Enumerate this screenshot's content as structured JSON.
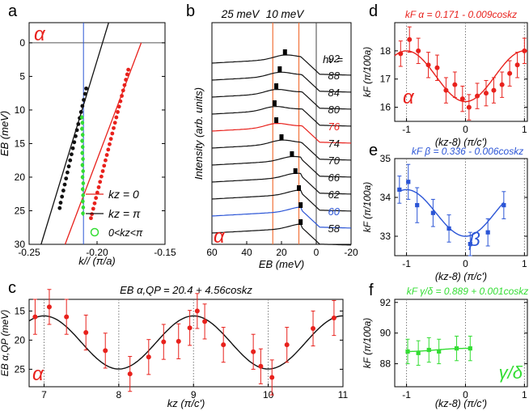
{
  "colors": {
    "red": "#e8211c",
    "black": "#111111",
    "blue": "#2b55d6",
    "green": "#33dd33",
    "orange": "#f2733a",
    "grid": "#888888"
  },
  "chart_data": [
    {
      "panel": "a",
      "type": "scatter",
      "panel_label": "a",
      "band_label": "α",
      "xlabel": "k// (π/a)",
      "ylabel": "EB (meV)",
      "xlim": [
        -0.25,
        -0.15
      ],
      "ylim": [
        30,
        -3
      ],
      "xticks": [
        "-0.25",
        "-0.20",
        "-0.15"
      ],
      "yticks": [
        "0",
        "5",
        "10",
        "15",
        "20",
        "25",
        "30"
      ],
      "reference_line": {
        "x": -0.21
      },
      "series": [
        {
          "name": "kz = 0",
          "color": "red",
          "points": [
            [
              -0.2045,
              26.1
            ],
            [
              -0.2038,
              25.5
            ],
            [
              -0.2028,
              24.7
            ],
            [
              -0.2018,
              23.9
            ],
            [
              -0.2008,
              23.1
            ],
            [
              -0.1998,
              22.3
            ],
            [
              -0.1988,
              21.5
            ],
            [
              -0.1978,
              20.7
            ],
            [
              -0.1968,
              19.9
            ],
            [
              -0.1958,
              19.1
            ],
            [
              -0.1948,
              18.3
            ],
            [
              -0.1938,
              17.5
            ],
            [
              -0.1928,
              16.7
            ],
            [
              -0.1918,
              15.9
            ],
            [
              -0.1908,
              15.1
            ],
            [
              -0.1898,
              14.3
            ],
            [
              -0.1888,
              13.5
            ],
            [
              -0.1878,
              12.7
            ],
            [
              -0.1868,
              11.9
            ],
            [
              -0.1858,
              11.1
            ],
            [
              -0.1848,
              10.3
            ],
            [
              -0.1838,
              9.5
            ],
            [
              -0.1828,
              8.7
            ],
            [
              -0.1818,
              7.9
            ],
            [
              -0.1808,
              7.1
            ],
            [
              -0.1798,
              6.3
            ],
            [
              -0.1788,
              5.5
            ],
            [
              -0.1778,
              4.7
            ],
            [
              -0.177,
              4.0
            ]
          ],
          "fit": [
            [
              -0.2235,
              30
            ],
            [
              -0.1675,
              0
            ]
          ]
        },
        {
          "name": "kz = π",
          "color": "black",
          "points": [
            [
              -0.2275,
              24.6
            ],
            [
              -0.2268,
              23.8
            ],
            [
              -0.2258,
              22.9
            ],
            [
              -0.2248,
              22.0
            ],
            [
              -0.2238,
              21.1
            ],
            [
              -0.2228,
              20.2
            ],
            [
              -0.2218,
              19.3
            ],
            [
              -0.2208,
              18.4
            ],
            [
              -0.2198,
              17.5
            ],
            [
              -0.2188,
              16.6
            ],
            [
              -0.2178,
              15.7
            ],
            [
              -0.2168,
              14.8
            ],
            [
              -0.2158,
              13.9
            ],
            [
              -0.2148,
              13.0
            ],
            [
              -0.2138,
              12.1
            ],
            [
              -0.2128,
              11.2
            ],
            [
              -0.2118,
              10.3
            ],
            [
              -0.2108,
              9.4
            ],
            [
              -0.2098,
              8.5
            ],
            [
              -0.2088,
              7.6
            ],
            [
              -0.208,
              6.8
            ]
          ],
          "fit": [
            [
              -0.2412,
              30
            ],
            [
              -0.1915,
              -3
            ]
          ]
        },
        {
          "name": "0<kz<π",
          "color": "green",
          "points": [
            [
              -0.2112,
              11.1
            ],
            [
              -0.2108,
              11.9
            ],
            [
              -0.2111,
              12.8
            ],
            [
              -0.2106,
              13.7
            ],
            [
              -0.211,
              14.6
            ],
            [
              -0.2106,
              15.5
            ],
            [
              -0.2109,
              16.4
            ],
            [
              -0.2104,
              17.3
            ],
            [
              -0.2108,
              18.2
            ],
            [
              -0.2103,
              19.1
            ],
            [
              -0.2107,
              20.0
            ],
            [
              -0.2102,
              20.9
            ],
            [
              -0.2106,
              21.8
            ],
            [
              -0.2103,
              22.7
            ],
            [
              -0.2105,
              23.6
            ],
            [
              -0.2102,
              24.5
            ],
            [
              -0.2104,
              25.4
            ]
          ]
        }
      ]
    },
    {
      "panel": "b",
      "type": "line",
      "panel_label": "b",
      "band_label": "α",
      "header_labels": [
        "25 meV",
        "10 meV"
      ],
      "xlabel": "EB (meV)",
      "ylabel": "Intensity (arb. units)",
      "xlim": [
        60,
        -20
      ],
      "xticks": [
        "60",
        "40",
        "20",
        "0",
        "-20"
      ],
      "hv_title": "hν =",
      "reference_lines": [
        25,
        10
      ],
      "series": [
        {
          "name": "92",
          "color": "black",
          "peak": 18
        },
        {
          "name": "88",
          "color": "black",
          "peak": 21
        },
        {
          "name": "84",
          "color": "black",
          "peak": 23
        },
        {
          "name": "80",
          "color": "black",
          "peak": 24
        },
        {
          "name": "76",
          "color": "red",
          "peak": 23
        },
        {
          "name": "74",
          "color": "black",
          "peak": 20
        },
        {
          "name": "70",
          "color": "black",
          "peak": 14
        },
        {
          "name": "66",
          "color": "black",
          "peak": 12
        },
        {
          "name": "62",
          "color": "black",
          "peak": 10
        },
        {
          "name": "60",
          "color": "blue",
          "peak": 9
        },
        {
          "name": "58",
          "color": "black",
          "peak": 9
        }
      ]
    },
    {
      "panel": "c",
      "type": "scatter",
      "panel_label": "c",
      "band_label": "α",
      "title": "EB α,QP = 20.4 + 4.56coskz",
      "xlabel": "kz (π/c')",
      "ylabel": "EB α,QP (meV)",
      "xlim": [
        6.8,
        11
      ],
      "ylim": [
        28,
        13
      ],
      "xticks": [
        "7",
        "8",
        "9",
        "10",
        "11"
      ],
      "yticks": [
        "15",
        "20",
        "25"
      ],
      "fit": {
        "A": 20.4,
        "B": 4.56
      },
      "points": [
        [
          6.88,
          16.0,
          3.0
        ],
        [
          7.07,
          14.3,
          3.0
        ],
        [
          7.3,
          16.0,
          3.0
        ],
        [
          7.56,
          18.7,
          3.0
        ],
        [
          7.82,
          21.8,
          3.0
        ],
        [
          8.15,
          25.8,
          3.0
        ],
        [
          8.4,
          22.9,
          3.0
        ],
        [
          8.6,
          20.3,
          3.0
        ],
        [
          8.8,
          20.2,
          3.0
        ],
        [
          8.95,
          17.9,
          3.0
        ],
        [
          9.05,
          15.0,
          3.0
        ],
        [
          9.15,
          16.8,
          3.0
        ],
        [
          9.4,
          20.8,
          3.0
        ],
        [
          9.8,
          22.0,
          3.0
        ],
        [
          9.9,
          24.5,
          3.0
        ],
        [
          10.05,
          26.4,
          3.0
        ],
        [
          10.25,
          20.8,
          3.0
        ],
        [
          10.6,
          18.0,
          3.0
        ],
        [
          10.88,
          16.2,
          3.0
        ]
      ]
    },
    {
      "panel": "d",
      "type": "scatter",
      "panel_label": "d",
      "band_label": "α",
      "title": "kF α = 0.171 - 0.009coskz",
      "xlabel": "(kz-8) (π/c')",
      "ylabel": "kF (π/100a)",
      "xlim": [
        -1.2,
        1.05
      ],
      "ylim": [
        15.5,
        19.0
      ],
      "xticks": [
        "-1",
        "0",
        "1"
      ],
      "yticks": [
        "16",
        "17",
        "18"
      ],
      "fit": {
        "A": 17.1,
        "B": -0.9
      },
      "points": [
        [
          -1.1,
          17.9,
          0.45
        ],
        [
          -0.95,
          18.4,
          0.45
        ],
        [
          -0.8,
          18.0,
          0.45
        ],
        [
          -0.63,
          17.5,
          0.45
        ],
        [
          -0.48,
          17.4,
          0.45
        ],
        [
          -0.33,
          16.6,
          0.45
        ],
        [
          -0.18,
          16.8,
          0.45
        ],
        [
          -0.05,
          16.3,
          0.45
        ],
        [
          0.06,
          16.0,
          0.45
        ],
        [
          0.2,
          16.4,
          0.45
        ],
        [
          0.35,
          16.5,
          0.45
        ],
        [
          0.48,
          16.6,
          0.45
        ],
        [
          0.62,
          16.8,
          0.45
        ],
        [
          0.75,
          17.2,
          0.45
        ],
        [
          0.88,
          17.5,
          0.45
        ],
        [
          1.0,
          18.0,
          0.45
        ]
      ]
    },
    {
      "panel": "e",
      "type": "scatter",
      "panel_label": "e",
      "band_label": "β",
      "title": "kF β = 0.336 - 0.006coskz",
      "xlabel": "(kz-8) (π/c')",
      "ylabel": "kF (π/100a)",
      "xlim": [
        -1.2,
        1.05
      ],
      "ylim": [
        32.5,
        35.0
      ],
      "xticks": [
        "-1",
        "0",
        "1"
      ],
      "yticks": [
        "33",
        "34",
        "35"
      ],
      "fit": {
        "A": 33.6,
        "B": -0.6
      },
      "points": [
        [
          -1.12,
          34.2,
          0.35
        ],
        [
          -0.97,
          34.4,
          0.45
        ],
        [
          -0.82,
          33.8,
          0.45
        ],
        [
          -0.55,
          33.6,
          0.35
        ],
        [
          -0.28,
          33.2,
          0.35
        ],
        [
          0.08,
          32.8,
          0.3
        ],
        [
          0.38,
          33.1,
          0.35
        ],
        [
          0.65,
          33.8,
          0.35
        ]
      ]
    },
    {
      "panel": "f",
      "type": "scatter",
      "panel_label": "f",
      "band_label": "γ/δ",
      "title": "kF γ/δ = 0.889 + 0.001coskz",
      "xlabel": "(kz-8) (π/c')",
      "ylabel": "kF (π/100a)",
      "xlim": [
        -1.2,
        1.05
      ],
      "ylim": [
        86.5,
        92.2
      ],
      "xticks": [
        "-1",
        "0",
        "1"
      ],
      "yticks": [
        "88",
        "90",
        "92"
      ],
      "fit": {
        "A": 88.9,
        "B": 0.1
      },
      "points": [
        [
          -0.98,
          88.8,
          0.8
        ],
        [
          -0.8,
          88.7,
          0.8
        ],
        [
          -0.62,
          88.9,
          0.8
        ],
        [
          -0.45,
          88.8,
          0.8
        ],
        [
          -0.15,
          89.0,
          0.8
        ],
        [
          0.08,
          89.0,
          0.8
        ]
      ]
    }
  ]
}
